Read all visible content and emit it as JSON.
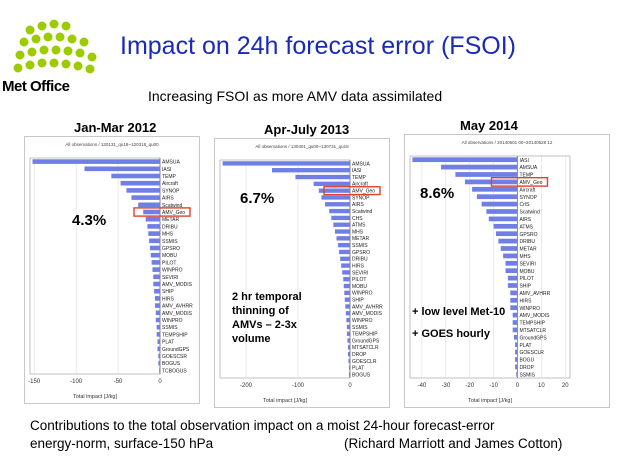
{
  "title": "Impact on 24h forecast error (FSOI)",
  "subtitle": "Increasing FSOI as more AMV data assimilated",
  "logo_text": "Met Office",
  "footer": {
    "line1": "Contributions to the total observation impact on a moist 24-hour forecast-error",
    "line2": "energy-norm, surface-150 hPa",
    "credit": "(Richard Marriott and James Cotton)"
  },
  "colors": {
    "title": "#1a2ab8",
    "bar": "#6f7fe6",
    "highlight": "#e0412a",
    "logo": "#9ccc00"
  },
  "chart_data": [
    {
      "type": "bar",
      "orientation": "horizontal",
      "title": "Jan-Mar 2012",
      "subtitle": "All observations / 120131_qu18~120318_qu00",
      "xlabel": "Total impact [J/kg]",
      "xlim": [
        -155,
        0
      ],
      "xticks": [
        -150,
        -100,
        -50,
        0
      ],
      "highlight": "AMV_Geo",
      "annotation": "4.3%",
      "categories": [
        "AMSUA",
        "IASI",
        "TEMP",
        "Aircraft",
        "SYNOP",
        "AIRS",
        "Scatwind",
        "AMV_Geo",
        "METAR",
        "DRIBU",
        "MHS",
        "SSMIS",
        "GPSRO",
        "MOBU",
        "PILOT",
        "WINPRO",
        "SEVIRI",
        "AMV_MODIS",
        "SHIP",
        "HIRS",
        "AMV_AVHRR",
        "AMV_MODIS",
        "WINPRO",
        "SSMIS",
        "TEMPSHIP",
        "PLAT",
        "GroundGPS",
        "GOESCSR",
        "BOGUS",
        "TCBOGUS"
      ],
      "values": [
        -152,
        -90,
        -58,
        -47,
        -40,
        -34,
        -26,
        -20,
        -17,
        -15,
        -14,
        -13,
        -12,
        -11,
        -10,
        -9,
        -8,
        -8,
        -7,
        -6,
        -6,
        -5,
        -5,
        -4,
        -4,
        -3,
        -3,
        -2,
        -2,
        -1
      ]
    },
    {
      "type": "bar",
      "orientation": "horizontal",
      "title": "Apr-July 2013",
      "subtitle": "All observations / 130401_qu00~130731_qu18",
      "xlabel": "Total impact [J/kg]",
      "xlim": [
        -250,
        0
      ],
      "xticks": [
        -200,
        -100,
        0
      ],
      "highlight": "AMV_Geo",
      "annotation": "6.7%",
      "note": [
        "2 hr temporal",
        "thinning of",
        "AMVs – 2-3x",
        "volume"
      ],
      "categories": [
        "AMSUA",
        "IASI",
        "TEMP",
        "Aircraft",
        "AMV_Geo",
        "SYNOP",
        "AIRS",
        "Scatwind",
        "CHS",
        "ATMS",
        "MHS",
        "METAR",
        "SSMIS",
        "GPSRO",
        "DRIBU",
        "HIRS",
        "SEVIRI",
        "PILOT",
        "MOBU",
        "WINPRO",
        "SHIP",
        "AMV_AVHRR",
        "AMV_MODIS",
        "WINPRO",
        "SSMIS",
        "TEMPSHIP",
        "GroundGPS",
        "MTSATCLR",
        "DROP",
        "GOESCLR",
        "PLAT",
        "BOGUS"
      ],
      "values": [
        -245,
        -150,
        -105,
        -70,
        -60,
        -55,
        -48,
        -40,
        -36,
        -32,
        -29,
        -26,
        -23,
        -21,
        -19,
        -17,
        -15,
        -13,
        -12,
        -11,
        -10,
        -9,
        -8,
        -7,
        -6,
        -6,
        -5,
        -4,
        -4,
        -3,
        -2,
        -2
      ]
    },
    {
      "type": "bar",
      "orientation": "horizontal",
      "title": "May 2014",
      "subtitle": "All observations / 20140501 00~20140528 12",
      "xlabel": "Total impact [J/kg]",
      "xlim": [
        -45,
        22
      ],
      "xticks": [
        -40,
        -30,
        -20,
        -10,
        0,
        10,
        20
      ],
      "highlight": "AMV_Geo",
      "annotation": "8.6%",
      "note": [
        "+ low level Met-10",
        "+ GOES hourly"
      ],
      "categories": [
        "IASI",
        "AMSUA",
        "TEMP",
        "AMV_Geo",
        "Aircraft",
        "SYNOP",
        "CrIS",
        "Scatwind",
        "AIRS",
        "ATMS",
        "GPSRO",
        "DRIBU",
        "METAR",
        "MHS",
        "SEVIRI",
        "MOBU",
        "PILOT",
        "SHIP",
        "AMV_AVHRR",
        "HIRS",
        "WINPRO",
        "AMV_MODIS",
        "TEMPSHIP",
        "MTSATCLR",
        "GroundGPS",
        "PLAT",
        "GOESCLR",
        "BOGU",
        "DROP",
        "SSMIS"
      ],
      "values": [
        -44,
        -32,
        -26,
        -22,
        -19,
        -17,
        -15,
        -13,
        -12,
        -10,
        -9,
        -8,
        -7,
        -6,
        -5,
        -5,
        -4,
        -4,
        -3,
        -3,
        -3,
        -2,
        -2,
        -2,
        -1.5,
        -1,
        -1,
        -1,
        -1,
        -0.5
      ]
    }
  ]
}
